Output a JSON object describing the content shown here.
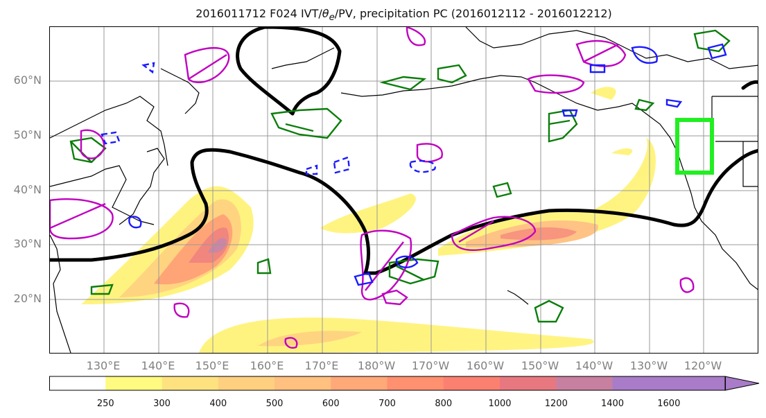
{
  "title": {
    "prefix": "2016011712 F024 IVT/",
    "theta": "θ",
    "theta_sub": "e",
    "suffix": "/PV, precipitation PC (2016012112 - 2016012212)"
  },
  "map": {
    "lat_labels": [
      "60°N",
      "50°N",
      "40°N",
      "30°N",
      "20°N"
    ],
    "lon_labels": [
      "130°E",
      "140°E",
      "150°E",
      "160°E",
      "170°E",
      "180°W",
      "170°W",
      "160°W",
      "150°W",
      "140°W",
      "130°W",
      "120°W"
    ],
    "gridlines": true,
    "colors": {
      "contour_black": "#000000",
      "contour_green": "#0a7d0a",
      "contour_magenta": "#c000c0",
      "contour_blue": "#1a1aff",
      "target_box": "#22ee22",
      "coast": "#000000",
      "grid": "#999999"
    }
  },
  "colorbar": {
    "levels": [
      "250",
      "300",
      "400",
      "500",
      "600",
      "700",
      "800",
      "1000",
      "1200",
      "1400",
      "1600"
    ],
    "colors": [
      "#ffffff",
      "#fffa80",
      "#ffe280",
      "#ffd080",
      "#ffc080",
      "#ffa878",
      "#ff9070",
      "#fc8070",
      "#e87880",
      "#c880a0",
      "#a87cc8"
    ],
    "extend": "max"
  }
}
